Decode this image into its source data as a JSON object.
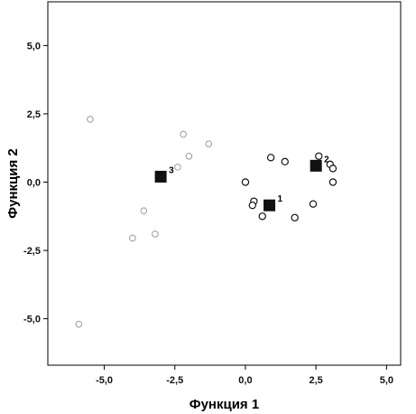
{
  "chart_data": {
    "type": "scatter",
    "xlabel": "Функция 1",
    "ylabel": "Функция 2",
    "xlim": [
      -7.0,
      5.5
    ],
    "ylim": [
      -6.7,
      6.6
    ],
    "xticks": [
      -5.0,
      -2.5,
      0.0,
      2.5,
      5.0
    ],
    "xtick_labels": [
      "-5,0",
      "-2,5",
      "0,0",
      "2,5",
      "5,0"
    ],
    "yticks": [
      5.0,
      2.5,
      0.0,
      -2.5,
      -5.0
    ],
    "ytick_labels": [
      "5,0",
      "2,5",
      "0,0",
      "-2,5",
      "-5,0"
    ],
    "grid": false,
    "colors": {
      "open_marker": "#111111",
      "faint_marker": "#9a9a9a",
      "centroid": "#111111"
    },
    "series": [
      {
        "points": [
          [
            0.0,
            0.0
          ],
          [
            0.9,
            0.9
          ],
          [
            1.4,
            0.75
          ],
          [
            2.6,
            0.95
          ],
          [
            3.0,
            0.65
          ],
          [
            3.1,
            0.5
          ],
          [
            3.1,
            0.0
          ],
          [
            0.3,
            -0.7
          ],
          [
            0.25,
            -0.85
          ],
          [
            0.6,
            -1.25
          ],
          [
            1.75,
            -1.3
          ],
          [
            2.4,
            -0.8
          ],
          [
            2.55,
            0.65
          ]
        ]
      },
      {
        "points": [
          [
            -5.5,
            2.3
          ],
          [
            -2.2,
            1.75
          ],
          [
            -1.3,
            1.4
          ],
          [
            -2.0,
            0.95
          ],
          [
            -2.4,
            0.55
          ],
          [
            -3.6,
            -1.05
          ],
          [
            -4.0,
            -2.05
          ],
          [
            -3.2,
            -1.9
          ],
          [
            -5.9,
            -5.2
          ]
        ]
      }
    ],
    "centroids": [
      {
        "label": "1",
        "x": 0.85,
        "y": -0.85
      },
      {
        "label": "2",
        "x": 2.5,
        "y": 0.6
      },
      {
        "label": "3",
        "x": -3.0,
        "y": 0.2
      }
    ]
  }
}
